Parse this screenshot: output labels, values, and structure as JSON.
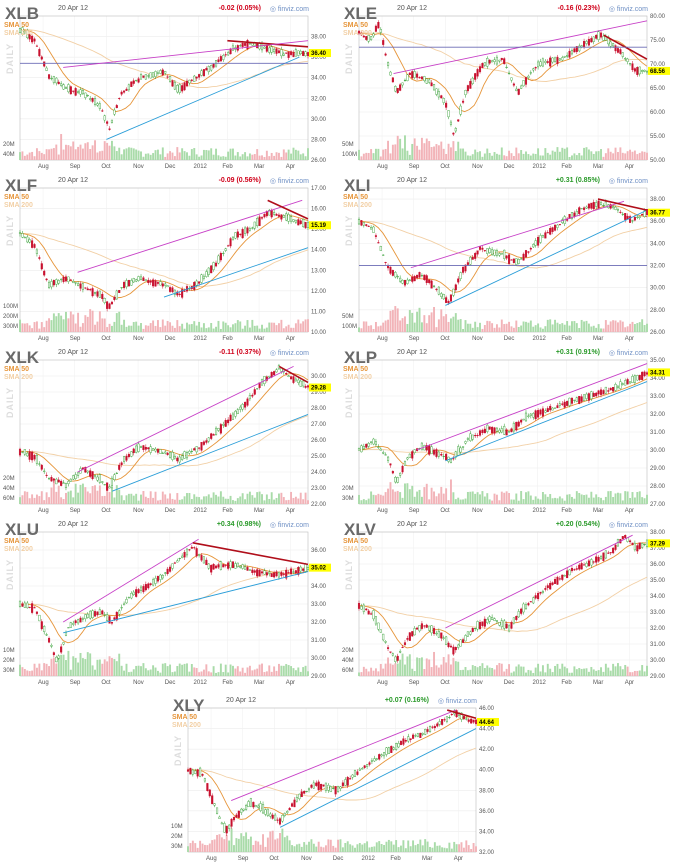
{
  "brand": "finviz.com",
  "date": "20 Apr 12",
  "sma50_label": "SMA 50",
  "sma200_label": "SMA 200",
  "daily_label": "DAILY",
  "x_labels": [
    "Aug",
    "Sep",
    "Oct",
    "Nov",
    "Dec",
    "2012",
    "Feb",
    "Mar",
    "Apr"
  ],
  "colors": {
    "up": "#2a9a2a",
    "down": "#c8102e",
    "sma50": "#e6953a",
    "sma200": "#f2d0a6",
    "channel": "#c740c7",
    "support": "#2b9ed8",
    "resistance": "#b00e1a",
    "horizontal": "#6b6bb5",
    "highlight": "#ffff00"
  },
  "chart_data": [
    {
      "type": "candlestick",
      "ticker": "XLB",
      "change": "-0.02 (0.05%)",
      "direction": "down",
      "last_price": "36.40",
      "ylim": [
        26,
        40
      ],
      "y_ticks": [
        "38.00",
        "36.00",
        "34.00",
        "32.00",
        "30.00",
        "28.00",
        "26.00"
      ],
      "vol_ticks": [
        "40M",
        "20M"
      ],
      "price_path": [
        [
          0,
          38.7
        ],
        [
          0.05,
          37.6
        ],
        [
          0.1,
          34.2
        ],
        [
          0.16,
          33.0
        ],
        [
          0.22,
          32.5
        ],
        [
          0.28,
          31.2
        ],
        [
          0.31,
          29.0
        ],
        [
          0.35,
          32.5
        ],
        [
          0.42,
          34.0
        ],
        [
          0.5,
          34.6
        ],
        [
          0.55,
          32.8
        ],
        [
          0.62,
          34.2
        ],
        [
          0.68,
          35.4
        ],
        [
          0.74,
          36.8
        ],
        [
          0.8,
          37.4
        ],
        [
          0.86,
          36.8
        ],
        [
          0.92,
          36.3
        ],
        [
          1,
          36.4
        ]
      ],
      "lines": [
        {
          "kind": "support",
          "from": [
            0.3,
            28.0
          ],
          "to": [
            0.97,
            36.0
          ]
        },
        {
          "kind": "horizontal",
          "from": [
            0,
            35.4
          ],
          "to": [
            1,
            35.4
          ]
        },
        {
          "kind": "resistance",
          "from": [
            0.72,
            37.6
          ],
          "to": [
            1,
            37.0
          ]
        },
        {
          "kind": "channel",
          "from": [
            0.15,
            35.0
          ],
          "to": [
            1,
            37.6
          ]
        }
      ]
    },
    {
      "type": "candlestick",
      "ticker": "XLE",
      "change": "-0.16 (0.23%)",
      "direction": "down",
      "last_price": "68.56",
      "ylim": [
        50,
        80
      ],
      "y_ticks": [
        "80.00",
        "75.00",
        "70.00",
        "65.00",
        "60.00",
        "55.00",
        "50.00"
      ],
      "vol_ticks": [
        "100M",
        "50M"
      ],
      "price_path": [
        [
          0,
          76.5
        ],
        [
          0.04,
          75.0
        ],
        [
          0.07,
          78.5
        ],
        [
          0.1,
          70.0
        ],
        [
          0.13,
          64.0
        ],
        [
          0.18,
          68.0
        ],
        [
          0.24,
          66.5
        ],
        [
          0.3,
          62.0
        ],
        [
          0.33,
          55.0
        ],
        [
          0.37,
          64.0
        ],
        [
          0.43,
          70.0
        ],
        [
          0.5,
          71.0
        ],
        [
          0.55,
          64.0
        ],
        [
          0.62,
          70.0
        ],
        [
          0.7,
          71.0
        ],
        [
          0.78,
          74.0
        ],
        [
          0.84,
          76.0
        ],
        [
          0.9,
          73.0
        ],
        [
          0.96,
          68.6
        ],
        [
          1,
          68.5
        ]
      ],
      "lines": [
        {
          "kind": "channel",
          "from": [
            0.12,
            68.0
          ],
          "to": [
            1,
            79.0
          ]
        },
        {
          "kind": "resistance",
          "from": [
            0.85,
            76.0
          ],
          "to": [
            1,
            71.0
          ]
        },
        {
          "kind": "horizontal",
          "from": [
            0,
            73.5
          ],
          "to": [
            1,
            73.5
          ]
        }
      ]
    },
    {
      "type": "candlestick",
      "ticker": "XLF",
      "change": "-0.09 (0.56%)",
      "direction": "down",
      "last_price": "15.19",
      "ylim": [
        10,
        17
      ],
      "y_ticks": [
        "17.00",
        "16.00",
        "15.00",
        "14.00",
        "13.00",
        "12.00",
        "11.00",
        "10.00"
      ],
      "vol_ticks": [
        "300M",
        "200M",
        "100M"
      ],
      "price_path": [
        [
          0,
          14.8
        ],
        [
          0.05,
          14.2
        ],
        [
          0.1,
          12.3
        ],
        [
          0.16,
          12.6
        ],
        [
          0.22,
          12.2
        ],
        [
          0.28,
          11.8
        ],
        [
          0.31,
          11.2
        ],
        [
          0.36,
          12.3
        ],
        [
          0.42,
          12.6
        ],
        [
          0.5,
          12.3
        ],
        [
          0.55,
          11.8
        ],
        [
          0.62,
          12.4
        ],
        [
          0.68,
          13.3
        ],
        [
          0.74,
          14.6
        ],
        [
          0.8,
          15.0
        ],
        [
          0.86,
          15.8
        ],
        [
          0.92,
          15.6
        ],
        [
          1,
          15.2
        ]
      ],
      "lines": [
        {
          "kind": "support",
          "from": [
            0.5,
            11.7
          ],
          "to": [
            1,
            14.1
          ]
        },
        {
          "kind": "channel",
          "from": [
            0.2,
            12.9
          ],
          "to": [
            0.98,
            16.4
          ]
        },
        {
          "kind": "resistance",
          "from": [
            0.86,
            16.4
          ],
          "to": [
            1,
            15.5
          ]
        }
      ]
    },
    {
      "type": "candlestick",
      "ticker": "XLI",
      "change": "+0.31 (0.85%)",
      "direction": "up",
      "last_price": "36.77",
      "ylim": [
        26,
        39
      ],
      "y_ticks": [
        "38.00",
        "36.00",
        "34.00",
        "32.00",
        "30.00",
        "28.00",
        "26.00"
      ],
      "vol_ticks": [
        "100M",
        "50M"
      ],
      "price_path": [
        [
          0,
          36.0
        ],
        [
          0.05,
          35.2
        ],
        [
          0.1,
          31.8
        ],
        [
          0.16,
          30.4
        ],
        [
          0.22,
          31.2
        ],
        [
          0.28,
          29.6
        ],
        [
          0.31,
          28.6
        ],
        [
          0.36,
          31.5
        ],
        [
          0.42,
          33.5
        ],
        [
          0.5,
          33.0
        ],
        [
          0.55,
          32.2
        ],
        [
          0.62,
          34.2
        ],
        [
          0.7,
          35.8
        ],
        [
          0.78,
          37.2
        ],
        [
          0.84,
          37.6
        ],
        [
          0.9,
          37.0
        ],
        [
          0.95,
          36.0
        ],
        [
          1,
          36.8
        ]
      ],
      "lines": [
        {
          "kind": "support",
          "from": [
            0.3,
            28.4
          ],
          "to": [
            1,
            37.0
          ]
        },
        {
          "kind": "horizontal",
          "from": [
            0,
            32.0
          ],
          "to": [
            1,
            32.0
          ]
        },
        {
          "kind": "channel",
          "from": [
            0.18,
            31.8
          ],
          "to": [
            0.92,
            37.8
          ]
        },
        {
          "kind": "resistance",
          "from": [
            0.83,
            38.0
          ],
          "to": [
            1,
            37.0
          ]
        }
      ]
    },
    {
      "type": "candlestick",
      "ticker": "XLK",
      "change": "-0.11 (0.37%)",
      "direction": "down",
      "last_price": "29.28",
      "ylim": [
        22,
        31
      ],
      "y_ticks": [
        "30.00",
        "29.00",
        "28.00",
        "27.00",
        "26.00",
        "25.00",
        "24.00",
        "23.00",
        "22.00"
      ],
      "vol_ticks": [
        "60M",
        "40M",
        "20M"
      ],
      "price_path": [
        [
          0,
          25.3
        ],
        [
          0.05,
          25.0
        ],
        [
          0.1,
          23.6
        ],
        [
          0.16,
          23.2
        ],
        [
          0.22,
          24.2
        ],
        [
          0.28,
          23.5
        ],
        [
          0.31,
          23.0
        ],
        [
          0.36,
          24.8
        ],
        [
          0.42,
          25.6
        ],
        [
          0.5,
          25.2
        ],
        [
          0.55,
          24.8
        ],
        [
          0.62,
          25.5
        ],
        [
          0.7,
          26.8
        ],
        [
          0.78,
          28.2
        ],
        [
          0.84,
          29.6
        ],
        [
          0.9,
          30.5
        ],
        [
          0.95,
          29.8
        ],
        [
          1,
          29.3
        ]
      ],
      "lines": [
        {
          "kind": "support",
          "from": [
            0.32,
            22.8
          ],
          "to": [
            1,
            27.6
          ]
        },
        {
          "kind": "channel",
          "from": [
            0.2,
            24.0
          ],
          "to": [
            0.95,
            30.6
          ]
        },
        {
          "kind": "resistance",
          "from": [
            0.9,
            30.6
          ],
          "to": [
            1,
            29.6
          ]
        }
      ]
    },
    {
      "type": "candlestick",
      "ticker": "XLP",
      "change": "+0.31 (0.91%)",
      "direction": "up",
      "last_price": "34.31",
      "ylim": [
        27,
        35
      ],
      "y_ticks": [
        "35.00",
        "34.00",
        "33.00",
        "32.00",
        "31.00",
        "30.00",
        "29.00",
        "28.00",
        "27.00"
      ],
      "vol_ticks": [
        "30M",
        "20M"
      ],
      "price_path": [
        [
          0,
          30.0
        ],
        [
          0.05,
          30.5
        ],
        [
          0.1,
          29.6
        ],
        [
          0.13,
          28.2
        ],
        [
          0.17,
          29.6
        ],
        [
          0.22,
          30.2
        ],
        [
          0.28,
          29.8
        ],
        [
          0.32,
          29.4
        ],
        [
          0.38,
          30.6
        ],
        [
          0.45,
          31.2
        ],
        [
          0.52,
          31.0
        ],
        [
          0.58,
          31.8
        ],
        [
          0.65,
          32.2
        ],
        [
          0.72,
          32.6
        ],
        [
          0.8,
          33.0
        ],
        [
          0.88,
          33.4
        ],
        [
          0.94,
          33.8
        ],
        [
          1,
          34.3
        ]
      ],
      "lines": [
        {
          "kind": "support",
          "from": [
            0.3,
            29.4
          ],
          "to": [
            1,
            33.8
          ]
        },
        {
          "kind": "channel",
          "from": [
            0.2,
            30.0
          ],
          "to": [
            1,
            34.8
          ]
        }
      ]
    },
    {
      "type": "candlestick",
      "ticker": "XLU",
      "change": "+0.34 (0.98%)",
      "direction": "up",
      "last_price": "35.02",
      "ylim": [
        29,
        37
      ],
      "y_ticks": [
        "36.00",
        "35.00",
        "34.00",
        "33.00",
        "32.00",
        "31.00",
        "30.00",
        "29.00"
      ],
      "vol_ticks": [
        "30M",
        "20M",
        "10M"
      ],
      "price_path": [
        [
          0,
          33.0
        ],
        [
          0.05,
          32.8
        ],
        [
          0.1,
          31.0
        ],
        [
          0.13,
          29.8
        ],
        [
          0.17,
          31.8
        ],
        [
          0.22,
          32.2
        ],
        [
          0.28,
          32.6
        ],
        [
          0.32,
          32.0
        ],
        [
          0.38,
          33.4
        ],
        [
          0.44,
          34.0
        ],
        [
          0.5,
          34.6
        ],
        [
          0.56,
          35.6
        ],
        [
          0.6,
          36.2
        ],
        [
          0.66,
          35.0
        ],
        [
          0.74,
          35.2
        ],
        [
          0.82,
          34.8
        ],
        [
          0.9,
          34.6
        ],
        [
          1,
          35.0
        ]
      ],
      "lines": [
        {
          "kind": "support",
          "from": [
            0.15,
            31.4
          ],
          "to": [
            1,
            34.8
          ]
        },
        {
          "kind": "channel",
          "from": [
            0.15,
            32.0
          ],
          "to": [
            0.62,
            36.6
          ]
        },
        {
          "kind": "resistance",
          "from": [
            0.6,
            36.4
          ],
          "to": [
            1,
            35.2
          ]
        }
      ]
    },
    {
      "type": "candlestick",
      "ticker": "XLV",
      "change": "+0.20 (0.54%)",
      "direction": "up",
      "last_price": "37.29",
      "ylim": [
        29,
        38
      ],
      "y_ticks": [
        "38.00",
        "37.00",
        "36.00",
        "35.00",
        "34.00",
        "33.00",
        "32.00",
        "31.00",
        "30.00",
        "29.00"
      ],
      "vol_ticks": [
        "60M",
        "40M",
        "20M"
      ],
      "price_path": [
        [
          0,
          33.4
        ],
        [
          0.05,
          32.8
        ],
        [
          0.1,
          30.8
        ],
        [
          0.13,
          30.0
        ],
        [
          0.17,
          31.4
        ],
        [
          0.22,
          32.2
        ],
        [
          0.28,
          31.6
        ],
        [
          0.33,
          30.6
        ],
        [
          0.4,
          32.0
        ],
        [
          0.46,
          32.6
        ],
        [
          0.52,
          32.0
        ],
        [
          0.58,
          33.4
        ],
        [
          0.66,
          34.6
        ],
        [
          0.74,
          35.6
        ],
        [
          0.82,
          36.2
        ],
        [
          0.88,
          36.8
        ],
        [
          0.92,
          37.8
        ],
        [
          0.96,
          37.0
        ],
        [
          1,
          37.3
        ]
      ],
      "lines": [
        {
          "kind": "channel",
          "from": [
            0.3,
            32.0
          ],
          "to": [
            0.95,
            37.8
          ]
        }
      ]
    },
    {
      "type": "candlestick",
      "ticker": "XLY",
      "change": "+0.07 (0.16%)",
      "direction": "up",
      "last_price": "44.64",
      "ylim": [
        32,
        46
      ],
      "y_ticks": [
        "46.00",
        "44.00",
        "42.00",
        "40.00",
        "38.00",
        "36.00",
        "34.00",
        "32.00"
      ],
      "vol_ticks": [
        "30M",
        "20M",
        "10M"
      ],
      "price_path": [
        [
          0,
          40.0
        ],
        [
          0.05,
          39.6
        ],
        [
          0.1,
          36.0
        ],
        [
          0.13,
          34.0
        ],
        [
          0.17,
          35.6
        ],
        [
          0.22,
          36.8
        ],
        [
          0.28,
          35.8
        ],
        [
          0.32,
          35.0
        ],
        [
          0.38,
          37.2
        ],
        [
          0.44,
          38.6
        ],
        [
          0.52,
          38.0
        ],
        [
          0.58,
          39.6
        ],
        [
          0.66,
          41.2
        ],
        [
          0.74,
          42.6
        ],
        [
          0.82,
          43.6
        ],
        [
          0.88,
          44.6
        ],
        [
          0.93,
          45.6
        ],
        [
          0.97,
          44.8
        ],
        [
          1,
          44.6
        ]
      ],
      "lines": [
        {
          "kind": "support",
          "from": [
            0.32,
            34.4
          ],
          "to": [
            1,
            44.0
          ]
        },
        {
          "kind": "channel",
          "from": [
            0.15,
            37.0
          ],
          "to": [
            0.93,
            45.8
          ]
        },
        {
          "kind": "resistance",
          "from": [
            0.9,
            45.8
          ],
          "to": [
            1,
            45.0
          ]
        }
      ]
    }
  ]
}
